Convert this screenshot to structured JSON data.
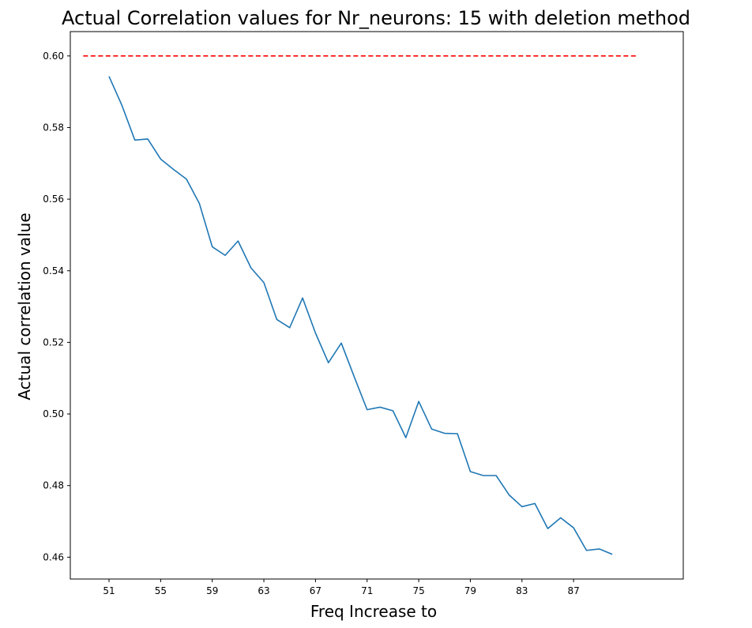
{
  "chart_data": {
    "type": "line",
    "title": "Actual Correlation values for Nr_neurons:  15 with deletion method",
    "xlabel": "Freq Increase to",
    "ylabel": "Actual correlation value",
    "xlim": [
      48,
      95.5
    ],
    "ylim": [
      0.4539,
      0.6068
    ],
    "x_ticks": [
      51,
      55,
      59,
      63,
      67,
      71,
      75,
      79,
      83,
      87
    ],
    "y_ticks": [
      0.46,
      0.48,
      0.5,
      0.52,
      0.54,
      0.56,
      0.58,
      0.6
    ],
    "y_tick_labels": [
      "0.46",
      "0.48",
      "0.50",
      "0.52",
      "0.54",
      "0.56",
      "0.58",
      "0.60"
    ],
    "grid": false,
    "series": [
      {
        "color": "#1f77b4",
        "style": "solid",
        "x": [
          51,
          52,
          53,
          54,
          55,
          56,
          57,
          58,
          59,
          60,
          61,
          62,
          63,
          64,
          65,
          66,
          67,
          68,
          69,
          70,
          71,
          72,
          73,
          74,
          75,
          76,
          77,
          78,
          79,
          80,
          81,
          82,
          83,
          84,
          85,
          86,
          87,
          88,
          89,
          90
        ],
        "y": [
          0.5943,
          0.5862,
          0.5765,
          0.5768,
          0.5712,
          0.5683,
          0.5656,
          0.5588,
          0.5467,
          0.5443,
          0.5483,
          0.5408,
          0.5367,
          0.5264,
          0.5241,
          0.5324,
          0.5226,
          0.5143,
          0.5198,
          0.5104,
          0.5012,
          0.5019,
          0.5009,
          0.4934,
          0.5035,
          0.4958,
          0.4946,
          0.4945,
          0.4839,
          0.4828,
          0.4828,
          0.4774,
          0.4741,
          0.475,
          0.468,
          0.471,
          0.4682,
          0.4619,
          0.4623,
          0.4608
        ]
      },
      {
        "color": "#ff0000",
        "style": "dashed",
        "x": [
          49,
          92
        ],
        "y": [
          0.6,
          0.6
        ]
      }
    ]
  }
}
